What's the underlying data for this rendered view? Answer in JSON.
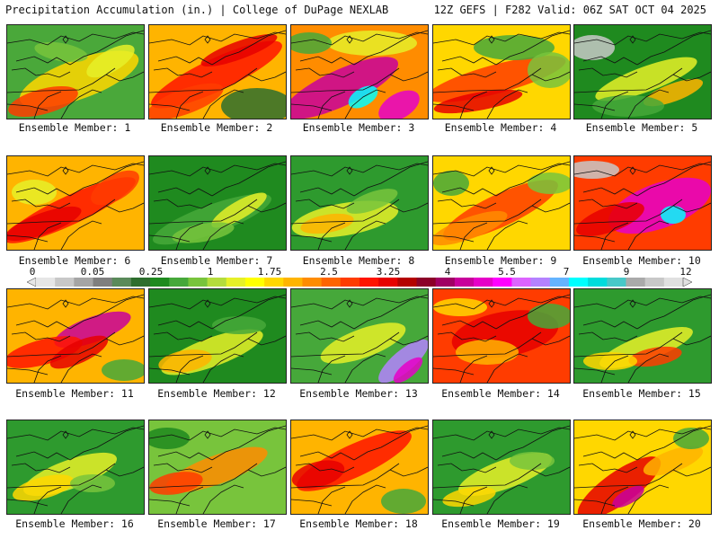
{
  "header": {
    "left_title": "Precipitation Accumulation (in.) | College of DuPage NEXLAB",
    "right_title": "12Z GEFS | F282 Valid: 06Z SAT OCT 04 2025"
  },
  "colorbar": {
    "tick_labels": [
      "0",
      "0.05",
      "0.25",
      "1",
      "1.75",
      "2.5",
      "3.25",
      "4",
      "5.5",
      "7",
      "9",
      "12"
    ],
    "colors": [
      "#e6e6e6",
      "#c8c8c8",
      "#a5a5a5",
      "#7f7f7f",
      "#5a8a5a",
      "#2e6e2e",
      "#1f8a1f",
      "#46a83a",
      "#78c43c",
      "#b4dc3c",
      "#e6f028",
      "#ffff00",
      "#ffd700",
      "#ffb400",
      "#ff8c00",
      "#ff6400",
      "#ff3c00",
      "#ff1400",
      "#e60000",
      "#b40000",
      "#8c0028",
      "#a00064",
      "#c8009b",
      "#e600c8",
      "#ff00ff",
      "#dc64ff",
      "#b482ff",
      "#64b4ff",
      "#00ffff",
      "#00dcdc",
      "#48c8c8",
      "#aaaaaa",
      "#c8c8c8",
      "#e0e0e0"
    ]
  },
  "ensemble_members": [
    {
      "label": "Ensemble Member: 1"
    },
    {
      "label": "Ensemble Member: 2"
    },
    {
      "label": "Ensemble Member: 3"
    },
    {
      "label": "Ensemble Member: 4"
    },
    {
      "label": "Ensemble Member: 5"
    },
    {
      "label": "Ensemble Member: 6"
    },
    {
      "label": "Ensemble Member: 7"
    },
    {
      "label": "Ensemble Member: 8"
    },
    {
      "label": "Ensemble Member: 9"
    },
    {
      "label": "Ensemble Member: 10"
    },
    {
      "label": "Ensemble Member: 11"
    },
    {
      "label": "Ensemble Member: 12"
    },
    {
      "label": "Ensemble Member: 13"
    },
    {
      "label": "Ensemble Member: 14"
    },
    {
      "label": "Ensemble Member: 15"
    },
    {
      "label": "Ensemble Member: 16"
    },
    {
      "label": "Ensemble Member: 17"
    },
    {
      "label": "Ensemble Member: 18"
    },
    {
      "label": "Ensemble Member: 19"
    },
    {
      "label": "Ensemble Member: 20"
    }
  ]
}
